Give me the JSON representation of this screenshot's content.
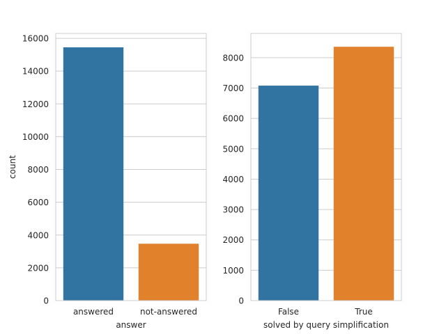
{
  "chart_data": [
    {
      "type": "bar",
      "categories": [
        "answered",
        "not-answered"
      ],
      "values": [
        15450,
        3470
      ],
      "colors": [
        "#3274a1",
        "#e1812c"
      ],
      "xlabel": "answer",
      "ylabel": "count",
      "ylim": [
        0,
        16300
      ],
      "yticks": [
        0,
        2000,
        4000,
        6000,
        8000,
        10000,
        12000,
        14000,
        16000
      ],
      "grid": "horizontal"
    },
    {
      "type": "bar",
      "categories": [
        "False",
        "True"
      ],
      "values": [
        7080,
        8360
      ],
      "colors": [
        "#3274a1",
        "#e1812c"
      ],
      "xlabel": "solved by query simplification",
      "ylabel": "",
      "ylim": [
        0,
        8800
      ],
      "yticks": [
        0,
        1000,
        2000,
        3000,
        4000,
        5000,
        6000,
        7000,
        8000
      ],
      "grid": "horizontal"
    }
  ]
}
